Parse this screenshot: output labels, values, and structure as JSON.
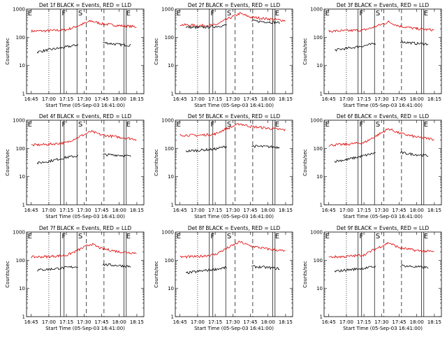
{
  "figure": {
    "xlabel": "Start Time (05-Sep-03 16:41:00)",
    "ylabel": "Counts/sec",
    "x_ticks": [
      "16:45",
      "17:00",
      "17:15",
      "17:30",
      "17:45",
      "18:00",
      "18:15"
    ],
    "y_ticks": [
      "1",
      "10",
      "100",
      "1000"
    ],
    "colors": {
      "events": "#000000",
      "lld": "#e00000"
    }
  },
  "chart_data": [
    {
      "type": "line",
      "title": "Det 1f BLACK = Events, RED = LLD",
      "xlabel": "Start Time (05-Sep-03 16:41:00)",
      "ylabel": "Counts/sec",
      "yscale": "log",
      "ylim": [
        1,
        1000
      ],
      "xlim": [
        "16:41",
        "18:21"
      ],
      "markers": {
        "E": "16:41",
        "F": "17:10",
        "S": "17:30",
        "E2": "18:04"
      },
      "series": [
        {
          "name": "LLD",
          "color": "#e00000",
          "values": [
            {
              "x": "16:45",
              "y": 165
            },
            {
              "x": "17:00",
              "y": 170
            },
            {
              "x": "17:15",
              "y": 185
            },
            {
              "x": "17:22",
              "y": 230
            },
            {
              "x": "17:36",
              "y": 380
            },
            {
              "x": "17:45",
              "y": 300
            },
            {
              "x": "18:00",
              "y": 260
            },
            {
              "x": "18:15",
              "y": 235
            }
          ]
        },
        {
          "name": "Events",
          "color": "#000000",
          "values": [
            {
              "x": "16:50",
              "y": 30
            },
            {
              "x": "17:00",
              "y": 36
            },
            {
              "x": "17:15",
              "y": 45
            },
            {
              "x": "17:25",
              "y": 55
            },
            {
              "x": "17:46",
              "y": 65
            },
            {
              "x": "18:00",
              "y": 55
            },
            {
              "x": "18:10",
              "y": 52
            }
          ]
        }
      ]
    },
    {
      "type": "line",
      "title": "Det 2f BLACK = Events, RED = LLD",
      "xlabel": "Start Time (05-Sep-03 16:41:00)",
      "ylabel": "Counts/sec",
      "yscale": "log",
      "ylim": [
        1,
        1000
      ],
      "xlim": [
        "16:41",
        "18:21"
      ],
      "markers": {
        "E": "16:41",
        "F": "17:10",
        "S": "17:30",
        "E2": "18:04"
      },
      "series": [
        {
          "name": "LLD",
          "color": "#e00000",
          "values": [
            {
              "x": "16:45",
              "y": 280
            },
            {
              "x": "17:00",
              "y": 260
            },
            {
              "x": "17:15",
              "y": 270
            },
            {
              "x": "17:22",
              "y": 380
            },
            {
              "x": "17:36",
              "y": 700
            },
            {
              "x": "17:45",
              "y": 520
            },
            {
              "x": "18:00",
              "y": 450
            },
            {
              "x": "18:15",
              "y": 390
            }
          ]
        },
        {
          "name": "Events",
          "color": "#000000",
          "values": [
            {
              "x": "16:50",
              "y": 230
            },
            {
              "x": "17:00",
              "y": 220
            },
            {
              "x": "17:15",
              "y": 240
            },
            {
              "x": "17:25",
              "y": 270
            },
            {
              "x": "17:46",
              "y": 380
            },
            {
              "x": "18:00",
              "y": 350
            },
            {
              "x": "18:10",
              "y": 330
            }
          ]
        }
      ]
    },
    {
      "type": "line",
      "title": "Det 3f BLACK = Events, RED = LLD",
      "xlabel": "Start Time (05-Sep-03 16:41:00)",
      "ylabel": "Counts/sec",
      "yscale": "log",
      "ylim": [
        1,
        1000
      ],
      "xlim": [
        "16:41",
        "18:21"
      ],
      "markers": {
        "E": "16:41",
        "F": "17:10",
        "S": "17:30",
        "E2": "18:04"
      },
      "series": [
        {
          "name": "LLD",
          "color": "#e00000",
          "values": [
            {
              "x": "16:45",
              "y": 165
            },
            {
              "x": "17:00",
              "y": 170
            },
            {
              "x": "17:15",
              "y": 180
            },
            {
              "x": "17:22",
              "y": 220
            },
            {
              "x": "17:36",
              "y": 350
            },
            {
              "x": "17:45",
              "y": 250
            },
            {
              "x": "18:00",
              "y": 200
            },
            {
              "x": "18:15",
              "y": 180
            }
          ]
        },
        {
          "name": "Events",
          "color": "#000000",
          "values": [
            {
              "x": "16:50",
              "y": 35
            },
            {
              "x": "17:00",
              "y": 40
            },
            {
              "x": "17:15",
              "y": 50
            },
            {
              "x": "17:25",
              "y": 60
            },
            {
              "x": "17:46",
              "y": 70
            },
            {
              "x": "18:00",
              "y": 60
            },
            {
              "x": "18:10",
              "y": 58
            }
          ]
        }
      ]
    },
    {
      "type": "line",
      "title": "Det 4f BLACK = Events, RED = LLD",
      "xlabel": "Start Time (05-Sep-03 16:41:00)",
      "ylabel": "Counts/sec",
      "yscale": "log",
      "ylim": [
        1,
        1000
      ],
      "xlim": [
        "16:41",
        "18:21"
      ],
      "markers": {
        "E": "16:41",
        "F": "17:10",
        "S": "17:30",
        "E2": "18:04"
      },
      "series": [
        {
          "name": "LLD",
          "color": "#e00000",
          "values": [
            {
              "x": "16:45",
              "y": 130
            },
            {
              "x": "17:00",
              "y": 140
            },
            {
              "x": "17:15",
              "y": 160
            },
            {
              "x": "17:22",
              "y": 220
            },
            {
              "x": "17:36",
              "y": 400
            },
            {
              "x": "17:45",
              "y": 300
            },
            {
              "x": "18:00",
              "y": 250
            },
            {
              "x": "18:15",
              "y": 210
            }
          ]
        },
        {
          "name": "Events",
          "color": "#000000",
          "values": [
            {
              "x": "16:50",
              "y": 30
            },
            {
              "x": "17:00",
              "y": 35
            },
            {
              "x": "17:15",
              "y": 48
            },
            {
              "x": "17:25",
              "y": 55
            },
            {
              "x": "17:46",
              "y": 60
            },
            {
              "x": "18:00",
              "y": 58
            },
            {
              "x": "18:10",
              "y": 52
            }
          ]
        }
      ]
    },
    {
      "type": "line",
      "title": "Det 5f BLACK = Events, RED = LLD",
      "xlabel": "Start Time (05-Sep-03 16:41:00)",
      "ylabel": "Counts/sec",
      "yscale": "log",
      "ylim": [
        1,
        1000
      ],
      "xlim": [
        "16:41",
        "18:21"
      ],
      "markers": {
        "E": "16:41",
        "F": "17:10",
        "S": "17:30",
        "E2": "18:04"
      },
      "series": [
        {
          "name": "LLD",
          "color": "#e00000",
          "values": [
            {
              "x": "16:45",
              "y": 300
            },
            {
              "x": "17:00",
              "y": 290
            },
            {
              "x": "17:15",
              "y": 320
            },
            {
              "x": "17:22",
              "y": 450
            },
            {
              "x": "17:36",
              "y": 750
            },
            {
              "x": "17:45",
              "y": 600
            },
            {
              "x": "18:00",
              "y": 520
            },
            {
              "x": "18:15",
              "y": 450
            }
          ]
        },
        {
          "name": "Events",
          "color": "#000000",
          "values": [
            {
              "x": "16:50",
              "y": 80
            },
            {
              "x": "17:00",
              "y": 85
            },
            {
              "x": "17:15",
              "y": 95
            },
            {
              "x": "17:25",
              "y": 120
            },
            {
              "x": "17:46",
              "y": 120
            },
            {
              "x": "18:00",
              "y": 115
            },
            {
              "x": "18:10",
              "y": 110
            }
          ]
        }
      ]
    },
    {
      "type": "line",
      "title": "Det 6f BLACK = Events, RED = LLD",
      "xlabel": "Start Time (05-Sep-03 16:41:00)",
      "ylabel": "Counts/sec",
      "yscale": "log",
      "ylim": [
        1,
        1000
      ],
      "xlim": [
        "16:41",
        "18:21"
      ],
      "markers": {
        "E": "16:41",
        "F": "17:10",
        "S": "17:30",
        "E2": "18:04"
      },
      "series": [
        {
          "name": "LLD",
          "color": "#e00000",
          "values": [
            {
              "x": "16:45",
              "y": 130
            },
            {
              "x": "17:00",
              "y": 140
            },
            {
              "x": "17:15",
              "y": 160
            },
            {
              "x": "17:22",
              "y": 230
            },
            {
              "x": "17:36",
              "y": 500
            },
            {
              "x": "17:45",
              "y": 350
            },
            {
              "x": "18:00",
              "y": 250
            },
            {
              "x": "18:15",
              "y": 210
            }
          ]
        },
        {
          "name": "Events",
          "color": "#000000",
          "values": [
            {
              "x": "16:50",
              "y": 35
            },
            {
              "x": "17:00",
              "y": 40
            },
            {
              "x": "17:15",
              "y": 55
            },
            {
              "x": "17:25",
              "y": 70
            },
            {
              "x": "17:46",
              "y": 70
            },
            {
              "x": "18:00",
              "y": 60
            },
            {
              "x": "18:10",
              "y": 55
            }
          ]
        }
      ]
    },
    {
      "type": "line",
      "title": "Det 7f BLACK = Events, RED = LLD",
      "xlabel": "Start Time (05-Sep-03 16:41:00)",
      "ylabel": "Counts/sec",
      "yscale": "log",
      "ylim": [
        1,
        1000
      ],
      "xlim": [
        "16:41",
        "18:21"
      ],
      "markers": {
        "E": "16:41",
        "F": "17:10",
        "S": "17:30",
        "E2": "18:04"
      },
      "series": [
        {
          "name": "LLD",
          "color": "#e00000",
          "values": [
            {
              "x": "16:45",
              "y": 130
            },
            {
              "x": "17:00",
              "y": 135
            },
            {
              "x": "17:15",
              "y": 150
            },
            {
              "x": "17:22",
              "y": 200
            },
            {
              "x": "17:36",
              "y": 380
            },
            {
              "x": "17:45",
              "y": 260
            },
            {
              "x": "18:00",
              "y": 200
            },
            {
              "x": "18:15",
              "y": 180
            }
          ]
        },
        {
          "name": "Events",
          "color": "#000000",
          "values": [
            {
              "x": "16:50",
              "y": 45
            },
            {
              "x": "17:00",
              "y": 48
            },
            {
              "x": "17:15",
              "y": 55
            },
            {
              "x": "17:25",
              "y": 60
            },
            {
              "x": "17:46",
              "y": 70
            },
            {
              "x": "18:00",
              "y": 65
            },
            {
              "x": "18:10",
              "y": 60
            }
          ]
        }
      ]
    },
    {
      "type": "line",
      "title": "Det 8f BLACK = Events, RED = LLD",
      "xlabel": "Start Time (05-Sep-03 16:41:00)",
      "ylabel": "Counts/sec",
      "yscale": "log",
      "ylim": [
        1,
        1000
      ],
      "xlim": [
        "16:41",
        "18:21"
      ],
      "markers": {
        "E": "16:41",
        "F": "17:10",
        "S": "17:30",
        "E2": "18:04"
      },
      "series": [
        {
          "name": "LLD",
          "color": "#e00000",
          "values": [
            {
              "x": "16:45",
              "y": 130
            },
            {
              "x": "17:00",
              "y": 135
            },
            {
              "x": "17:15",
              "y": 160
            },
            {
              "x": "17:22",
              "y": 230
            },
            {
              "x": "17:36",
              "y": 450
            },
            {
              "x": "17:45",
              "y": 320
            },
            {
              "x": "18:00",
              "y": 250
            },
            {
              "x": "18:15",
              "y": 210
            }
          ]
        },
        {
          "name": "Events",
          "color": "#000000",
          "values": [
            {
              "x": "16:50",
              "y": 35
            },
            {
              "x": "17:00",
              "y": 40
            },
            {
              "x": "17:15",
              "y": 48
            },
            {
              "x": "17:25",
              "y": 55
            },
            {
              "x": "17:46",
              "y": 60
            },
            {
              "x": "18:00",
              "y": 55
            },
            {
              "x": "18:10",
              "y": 50
            }
          ]
        }
      ]
    },
    {
      "type": "line",
      "title": "Det 9f BLACK = Events, RED = LLD",
      "xlabel": "Start Time (05-Sep-03 16:41:00)",
      "ylabel": "Counts/sec",
      "yscale": "log",
      "ylim": [
        1,
        1000
      ],
      "xlim": [
        "16:41",
        "18:21"
      ],
      "markers": {
        "E": "16:41",
        "F": "17:10",
        "S": "17:30",
        "E2": "18:04"
      },
      "series": [
        {
          "name": "LLD",
          "color": "#e00000",
          "values": [
            {
              "x": "16:45",
              "y": 130
            },
            {
              "x": "17:00",
              "y": 135
            },
            {
              "x": "17:15",
              "y": 155
            },
            {
              "x": "17:22",
              "y": 220
            },
            {
              "x": "17:36",
              "y": 420
            },
            {
              "x": "17:45",
              "y": 280
            },
            {
              "x": "18:00",
              "y": 220
            },
            {
              "x": "18:15",
              "y": 200
            }
          ]
        },
        {
          "name": "Events",
          "color": "#000000",
          "values": [
            {
              "x": "16:50",
              "y": 40
            },
            {
              "x": "17:00",
              "y": 45
            },
            {
              "x": "17:15",
              "y": 52
            },
            {
              "x": "17:25",
              "y": 60
            },
            {
              "x": "17:46",
              "y": 65
            },
            {
              "x": "18:00",
              "y": 58
            },
            {
              "x": "18:10",
              "y": 55
            }
          ]
        }
      ]
    }
  ]
}
